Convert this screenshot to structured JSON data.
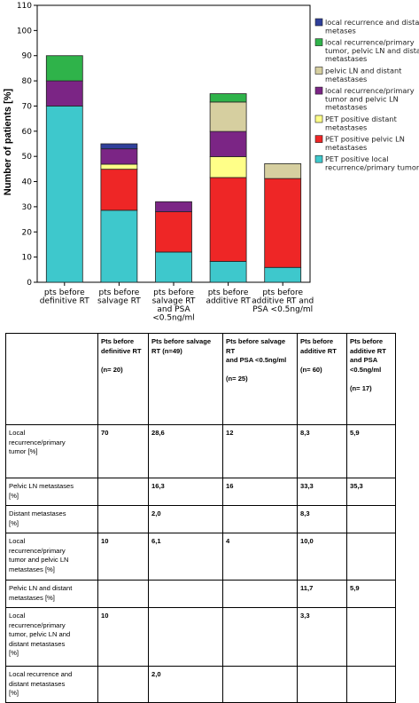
{
  "chart_data": {
    "type": "bar",
    "stacked": true,
    "ylabel": "Number of patients [%]",
    "ylim": [
      0,
      110
    ],
    "yticks": [
      0,
      10,
      20,
      30,
      40,
      50,
      60,
      70,
      80,
      90,
      100,
      110
    ],
    "grid": false,
    "legend_position": "right",
    "categories": [
      [
        "pts before",
        "definitive RT"
      ],
      [
        "pts before",
        "salvage RT"
      ],
      [
        "pts before",
        "salvage RT",
        "and PSA",
        "<0.5ng/ml"
      ],
      [
        "pts before",
        "additive RT"
      ],
      [
        "pts before",
        "additive RT and",
        "PSA <0.5ng/ml"
      ]
    ],
    "series": [
      {
        "name": "PET positive local recurrence/primary tumor",
        "color": "#3ec8cc",
        "values": [
          70,
          28.6,
          12,
          8.3,
          5.9
        ]
      },
      {
        "name": "PET positive pelvic LN metastases",
        "color": "#ee2626",
        "values": [
          0,
          16.3,
          16,
          33.3,
          35.3
        ]
      },
      {
        "name": "PET positive distant metastases",
        "color": "#ffff88",
        "values": [
          0,
          2.0,
          0,
          8.3,
          0
        ]
      },
      {
        "name": "local recurrence/primary tumor and pelvic LN metastases",
        "color": "#7b2585",
        "values": [
          10,
          6.1,
          4,
          10.0,
          0
        ]
      },
      {
        "name": "pelvic LN and distant metastases",
        "color": "#d6cfa0",
        "values": [
          0,
          0,
          0,
          11.7,
          5.9
        ]
      },
      {
        "name": "local recurrence/primary tumor, pelvic LN and distant metastases",
        "color": "#2fb34a",
        "values": [
          10,
          0,
          0,
          3.3,
          0
        ]
      },
      {
        "name": "local recurrence and distant metases",
        "color": "#2f3f9a",
        "values": [
          0,
          2.0,
          0,
          0,
          0
        ]
      }
    ],
    "legend_lines": [
      [
        "local recurrence and distant",
        "metases"
      ],
      [
        "local recurrence/primary",
        "tumor, pelvic LN and distant",
        "metastases"
      ],
      [
        "pelvic LN and distant",
        "metastases"
      ],
      [
        "local recurrence/primary",
        "tumor and pelvic LN",
        "metastases"
      ],
      [
        "PET positive distant",
        "metastases"
      ],
      [
        "PET positive pelvic LN",
        "metastases"
      ],
      [
        "PET positive local",
        "recurrence/primary tumor"
      ]
    ]
  },
  "table": {
    "headers": [
      [
        "Pts before",
        "definitive RT",
        "",
        "(n= 20)"
      ],
      [
        "Pts before salvage RT (n=49)"
      ],
      [
        "Pts before salvage RT",
        "and PSA <0.5ng/ml",
        "",
        "(n= 25)"
      ],
      [
        "Pts before",
        "additive RT",
        "",
        "(n= 60)"
      ],
      [
        "Pts before",
        "additive RT",
        "and PSA",
        "<0.5ng/ml",
        "",
        "(n= 17)"
      ]
    ],
    "rows": [
      {
        "label": [
          "Local",
          "recurrence/primary",
          "tumor [%]"
        ],
        "values": [
          "70",
          "28,6",
          "12",
          "8,3",
          "5,9"
        ]
      },
      {
        "label": [
          "Pelvic LN metastases",
          "[%]"
        ],
        "values": [
          "",
          "16,3",
          "16",
          "33,3",
          "35,3"
        ]
      },
      {
        "label": [
          "Distant metastases",
          "[%]"
        ],
        "values": [
          "",
          "2,0",
          "",
          "8,3",
          ""
        ]
      },
      {
        "label": [
          "Local",
          "recurrence/primary",
          "tumor and pelvic LN",
          "metastases [%]"
        ],
        "values": [
          "10",
          "6,1",
          "4",
          "10,0",
          ""
        ]
      },
      {
        "label": [
          "Pelvic LN and distant",
          "metastases [%]"
        ],
        "values": [
          "",
          "",
          "",
          "11,7",
          "5,9"
        ]
      },
      {
        "label": [
          "Local",
          "recurrence/primary",
          "tumor, pelvic LN and",
          "distant metastases",
          "[%]"
        ],
        "values": [
          "10",
          "",
          "",
          "3,3",
          ""
        ]
      },
      {
        "label": [
          "Local recurrence and",
          "distant metastases",
          "[%]"
        ],
        "values": [
          "",
          "2,0",
          "",
          "",
          ""
        ]
      }
    ]
  }
}
